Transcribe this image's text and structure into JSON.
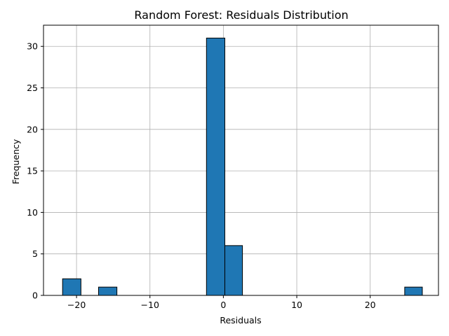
{
  "chart_data": {
    "type": "bar",
    "title": "Random Forest: Residuals Distribution",
    "xlabel": "Residuals",
    "ylabel": "Frequency",
    "xlim": [
      -24.5,
      29.3
    ],
    "ylim": [
      0,
      32.55
    ],
    "xticks": [
      -20,
      -10,
      0,
      10,
      20
    ],
    "xtick_labels": [
      "−20",
      "−10",
      "0",
      "10",
      "20"
    ],
    "yticks": [
      0,
      5,
      10,
      15,
      20,
      25,
      30
    ],
    "ytick_labels": [
      "0",
      "5",
      "10",
      "15",
      "20",
      "25",
      "30"
    ],
    "grid": true,
    "bar_color": "#1f77b4",
    "edge_color": "#000000",
    "bins": [
      {
        "x0": -21.9,
        "x1": -19.4,
        "count": 2
      },
      {
        "x0": -19.4,
        "x1": -17.0,
        "count": 0
      },
      {
        "x0": -17.0,
        "x1": -14.5,
        "count": 1
      },
      {
        "x0": -14.5,
        "x1": -12.1,
        "count": 0
      },
      {
        "x0": -12.1,
        "x1": -9.6,
        "count": 0
      },
      {
        "x0": -9.6,
        "x1": -7.2,
        "count": 0
      },
      {
        "x0": -7.2,
        "x1": -4.7,
        "count": 0
      },
      {
        "x0": -4.7,
        "x1": -2.3,
        "count": 0
      },
      {
        "x0": -2.3,
        "x1": 0.2,
        "count": 31
      },
      {
        "x0": 0.2,
        "x1": 2.6,
        "count": 6
      },
      {
        "x0": 2.6,
        "x1": 5.1,
        "count": 0
      },
      {
        "x0": 5.1,
        "x1": 7.5,
        "count": 0
      },
      {
        "x0": 7.5,
        "x1": 10.0,
        "count": 0
      },
      {
        "x0": 10.0,
        "x1": 12.4,
        "count": 0
      },
      {
        "x0": 12.4,
        "x1": 14.9,
        "count": 0
      },
      {
        "x0": 14.9,
        "x1": 17.3,
        "count": 0
      },
      {
        "x0": 17.3,
        "x1": 19.8,
        "count": 0
      },
      {
        "x0": 19.8,
        "x1": 22.2,
        "count": 0
      },
      {
        "x0": 22.2,
        "x1": 24.7,
        "count": 0
      },
      {
        "x0": 24.7,
        "x1": 27.1,
        "count": 1
      }
    ]
  }
}
